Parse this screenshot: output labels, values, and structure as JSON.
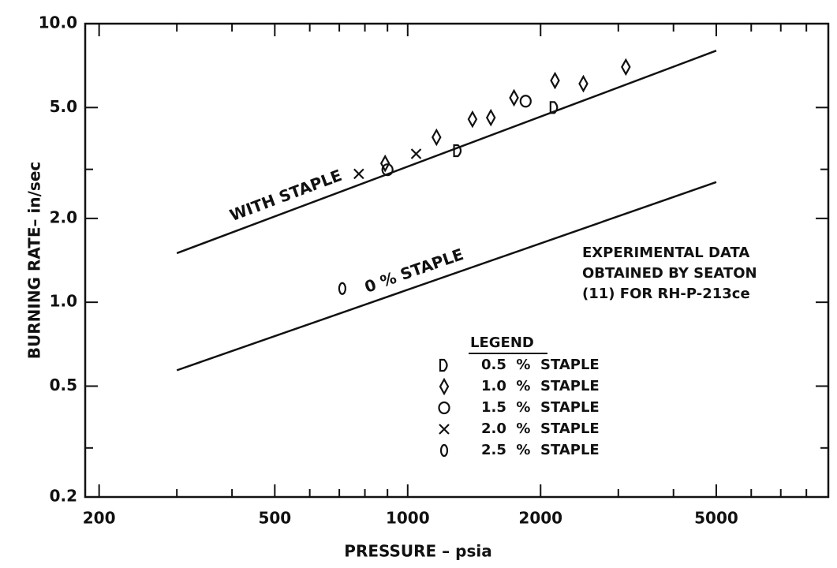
{
  "chart_data": {
    "type": "scatter",
    "xlabel": "PRESSURE – psia",
    "ylabel": "BURNING RATE– in/sec",
    "log_x": true,
    "log_y": true,
    "xlim": [
      186,
      8970
    ],
    "ylim": [
      0.2,
      10
    ],
    "xticks": [
      200,
      500,
      1000,
      2000,
      5000
    ],
    "xminor": [
      300,
      400,
      600,
      700,
      800,
      900,
      3000,
      4000,
      6000,
      7000,
      8000
    ],
    "yticks": [
      0.2,
      0.5,
      {
        "value": 1,
        "label": "1.0"
      },
      {
        "value": 2,
        "label": "2.0"
      },
      {
        "value": 5,
        "label": "5.0"
      },
      {
        "value": 10,
        "label": "10.0"
      }
    ],
    "yminor": [
      0.3,
      3
    ],
    "color": "#111111",
    "lines": [
      {
        "name": "WITH STAPLE",
        "x": [
          300,
          5000
        ],
        "values": [
          1.5,
          8
        ]
      },
      {
        "name": "0 % STAPLE",
        "x": [
          300,
          5000
        ],
        "values": [
          0.57,
          2.7
        ]
      }
    ],
    "annotation": [
      "EXPERIMENTAL DATA",
      "OBTAINED BY SEATON",
      "(11)  FOR  RH-P-213ce"
    ],
    "legend_title": "LEGEND",
    "series": [
      {
        "name": "0.5  %  STAPLE",
        "marker": "d-shape",
        "x": [
          1300,
          2150
        ],
        "values": [
          3.5,
          5.0
        ]
      },
      {
        "name": "1.0  %  STAPLE",
        "marker": "diamond",
        "x": [
          889,
          1162,
          1402,
          1543,
          1741,
          2156,
          2500,
          3120
        ],
        "values": [
          3.15,
          3.91,
          4.54,
          4.6,
          5.42,
          6.25,
          6.09,
          6.99
        ]
      },
      {
        "name": "1.5  %  STAPLE",
        "marker": "circle",
        "x": [
          900,
          1850
        ],
        "values": [
          2.99,
          5.27
        ]
      },
      {
        "name": "2.0  %  STAPLE",
        "marker": "cross",
        "x": [
          775,
          1045
        ],
        "values": [
          2.89,
          3.41
        ]
      },
      {
        "name": "2.5  %  STAPLE",
        "marker": "oval",
        "x": [
          711
        ],
        "values": [
          1.12
        ]
      }
    ]
  }
}
